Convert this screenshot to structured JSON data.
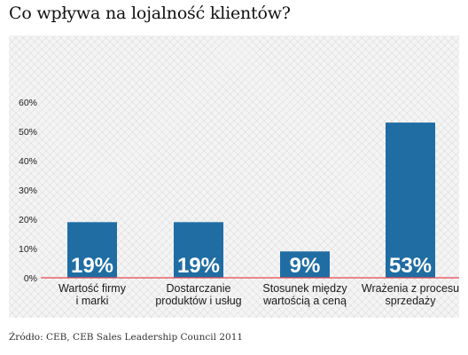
{
  "title": "Co wpływa na lojalność klientów?",
  "source": "Źródło: CEB, CEB Sales Leadership Council 2011",
  "colors": {
    "bar": "#1f6da3",
    "baseline": "#e8474f"
  },
  "chart_data": {
    "type": "bar",
    "title": "Co wpływa na lojalność klientów?",
    "categories": [
      [
        "Wartość firmy",
        "i marki"
      ],
      [
        "Dostarczanie",
        "produktów i usług"
      ],
      [
        "Stosunek między",
        "wartością a ceną"
      ],
      [
        "Wrażenia z procesu",
        "sprzedaży"
      ]
    ],
    "values": [
      19,
      19,
      9,
      53
    ],
    "data_labels": [
      "19%",
      "19%",
      "9%",
      "53%"
    ],
    "yticks": [
      "0%",
      "10%",
      "20%",
      "30%",
      "40%",
      "50%",
      "60%"
    ],
    "ylim": [
      0,
      60
    ],
    "grid": false
  }
}
